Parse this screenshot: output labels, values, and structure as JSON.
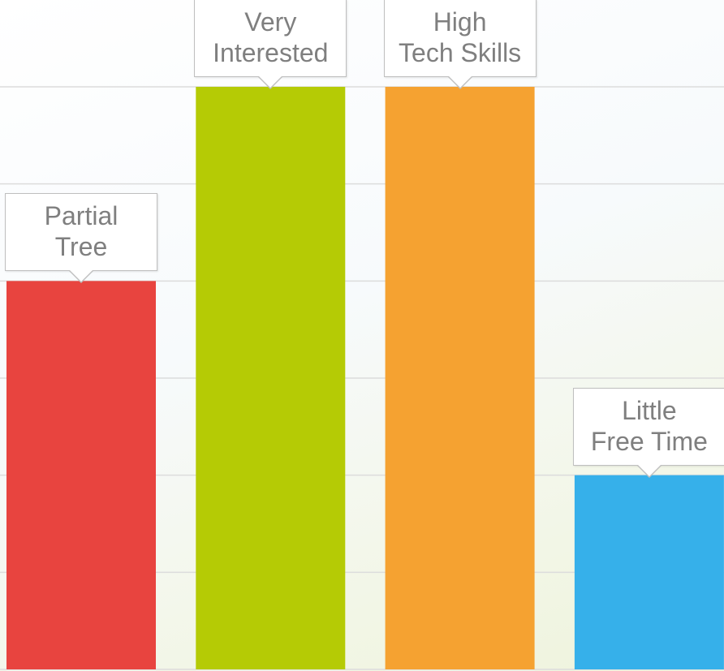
{
  "chart_data": {
    "type": "bar",
    "categories": [
      "Partial\nTree",
      "Very\nInterested",
      "High\nTech Skills",
      "Little\nFree Time"
    ],
    "values": [
      4,
      6,
      6,
      2
    ],
    "colors": [
      "#e8443f",
      "#b5cb05",
      "#f5a231",
      "#36b0ea"
    ],
    "ylim": [
      0,
      6
    ],
    "yticks": [
      0,
      1,
      2,
      3,
      4,
      5,
      6
    ],
    "grid": true
  }
}
